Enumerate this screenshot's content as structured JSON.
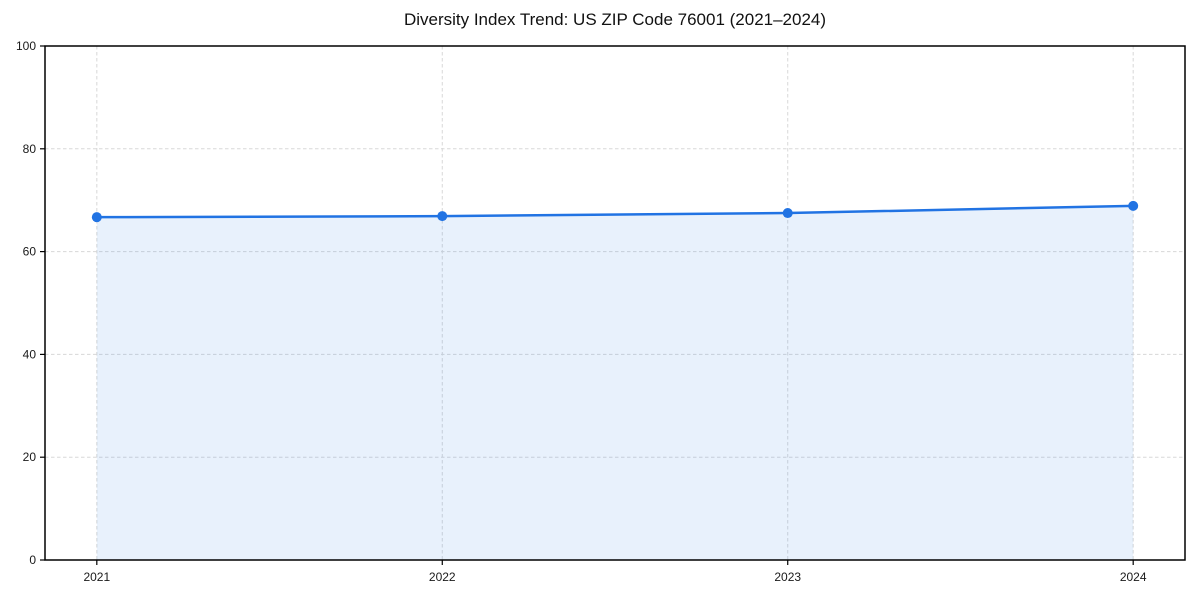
{
  "title": "Diversity Index Trend: US ZIP Code 76001 (2021–2024)",
  "chart_data": {
    "type": "area",
    "title": "Diversity Index Trend: US ZIP Code 76001 (2021–2024)",
    "x": [
      "2021",
      "2022",
      "2023",
      "2024"
    ],
    "series": [
      {
        "name": "Diversity Index",
        "values": [
          66.7,
          66.9,
          67.5,
          68.9
        ]
      }
    ],
    "xlabel": "",
    "ylabel": "",
    "ylim": [
      0,
      100
    ],
    "yticks": [
      0,
      20,
      40,
      60,
      80,
      100
    ],
    "grid": true,
    "grid_style": "dashed",
    "legend_position": "none",
    "marker": "circle",
    "colors": {
      "line": "#2173e3",
      "marker": "#2173e3",
      "area_fill": "rgba(33,115,227,0.10)",
      "grid": "#d8d8d8",
      "spine": "#000000",
      "tick_label": "#1a1a1a",
      "title": "#111111",
      "background": "#ffffff"
    }
  }
}
